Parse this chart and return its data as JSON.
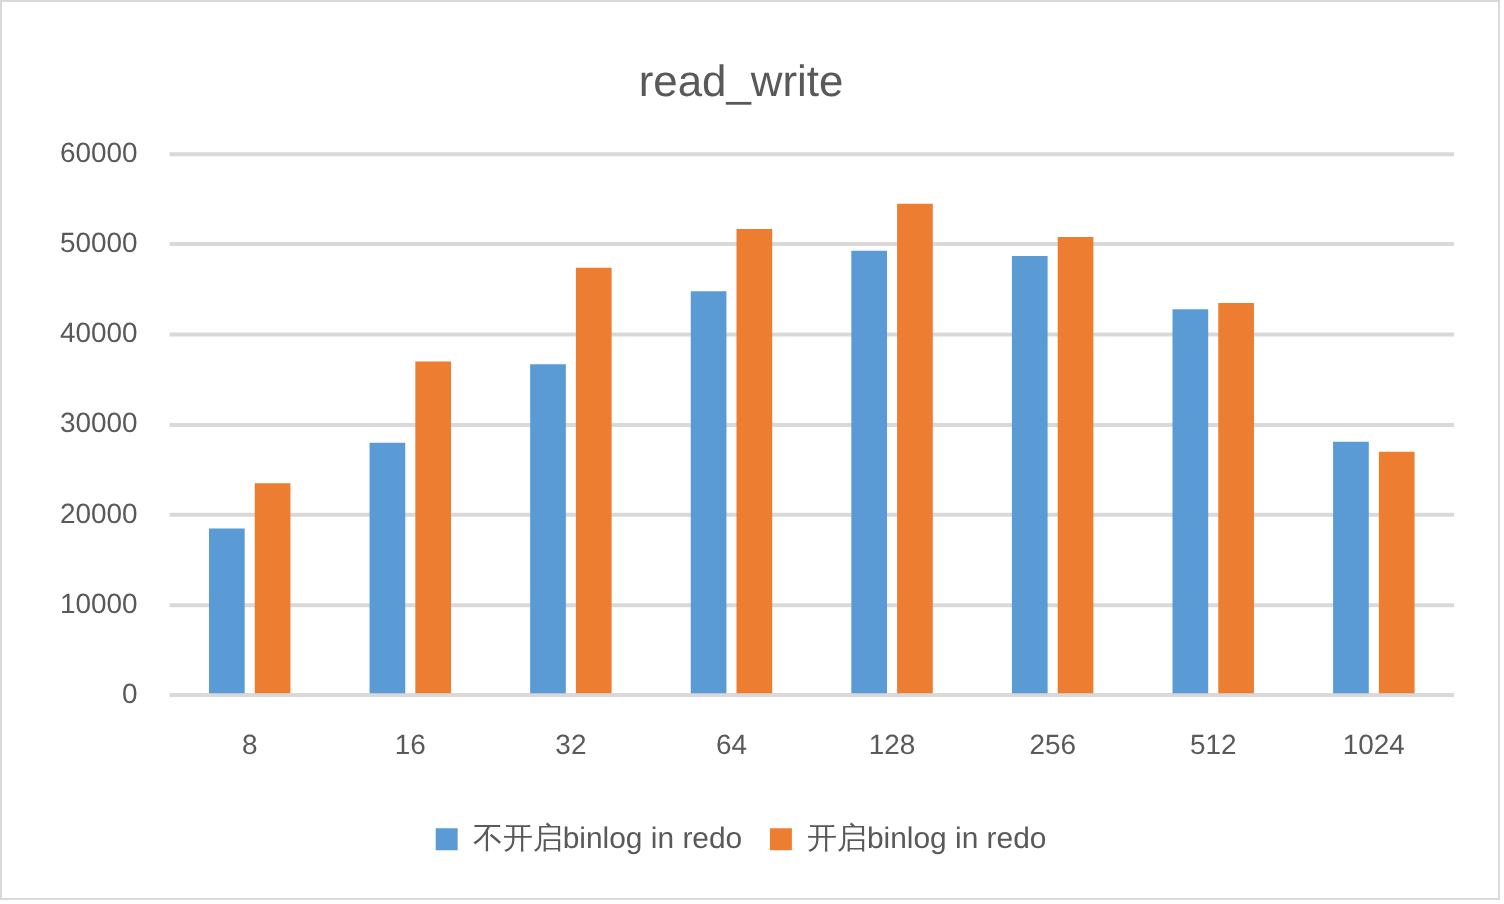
{
  "chart_data": {
    "type": "bar",
    "title": "read_write",
    "categories": [
      "8",
      "16",
      "32",
      "64",
      "128",
      "256",
      "512",
      "1024"
    ],
    "series": [
      {
        "name": "不开启binlog in redo",
        "color": "#5b9bd5",
        "values": [
          18500,
          28000,
          36700,
          44800,
          49300,
          48700,
          42800,
          28100
        ]
      },
      {
        "name": "开启binlog in redo",
        "color": "#ed7d31",
        "values": [
          23500,
          37000,
          47400,
          51700,
          54500,
          50800,
          43500,
          27000
        ]
      }
    ],
    "ylim": [
      0,
      60000
    ],
    "yticks": [
      0,
      10000,
      20000,
      30000,
      40000,
      50000,
      60000
    ],
    "grid": "y",
    "legend": "bottom"
  }
}
